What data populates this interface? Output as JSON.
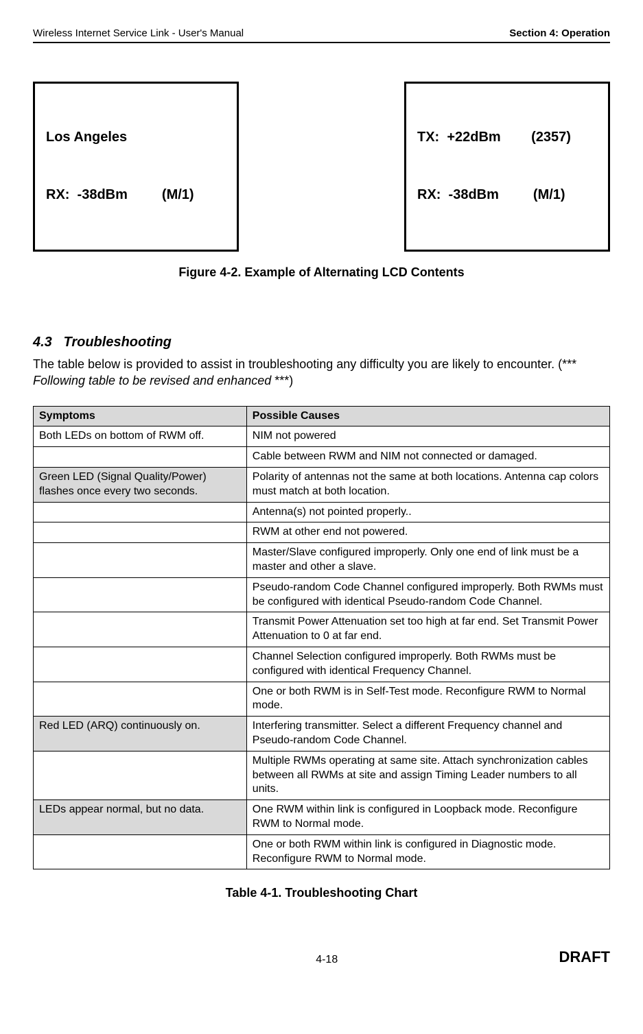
{
  "header": {
    "left": "Wireless Internet Service Link - User's Manual",
    "right": "Section 4: Operation"
  },
  "lcd": {
    "box1": {
      "line1": "Los Angeles",
      "line2": "RX:  -38dBm         (M/1)"
    },
    "box2": {
      "line1": "TX:  +22dBm        (2357)",
      "line2": "RX:  -38dBm         (M/1)"
    }
  },
  "figure_caption": "Figure 4-2.  Example of Alternating LCD Contents",
  "section": {
    "number": "4.3",
    "title": "Troubleshooting",
    "body_prefix": "The table below is provided to assist in troubleshooting any difficulty you are likely to encounter.  (*** ",
    "body_italic": "Following table to be revised and enhanced ",
    "body_suffix": "***)"
  },
  "table": {
    "header": {
      "symptoms": "Symptoms",
      "causes": "Possible Causes"
    },
    "rows": [
      {
        "symptom": "Both LEDs on bottom of RWM off.",
        "cause": "NIM not powered",
        "shaded": false
      },
      {
        "symptom": "",
        "cause": "Cable between RWM and NIM not connected or damaged.",
        "shaded": false
      },
      {
        "symptom": "Green LED (Signal Quality/Power) flashes once every two seconds.",
        "cause": "Polarity of antennas not the same at both locations.  Antenna cap colors must match at both location.",
        "shaded": true
      },
      {
        "symptom": "",
        "cause": "Antenna(s) not pointed properly..",
        "shaded": false
      },
      {
        "symptom": "",
        "cause": "RWM at other end not powered.",
        "shaded": false
      },
      {
        "symptom": "",
        "cause": "Master/Slave configured improperly.  Only one end of link must be a master and other a slave.",
        "shaded": false
      },
      {
        "symptom": "",
        "cause": "Pseudo-random Code Channel configured improperly. Both RWMs must be configured with identical Pseudo-random Code Channel.",
        "shaded": false
      },
      {
        "symptom": "",
        "cause": "Transmit Power Attenuation set too high at far end.  Set Transmit Power Attenuation to 0 at far end.",
        "shaded": false
      },
      {
        "symptom": "",
        "cause": "Channel Selection configured improperly. Both RWMs must be configured with identical Frequency Channel.",
        "shaded": false
      },
      {
        "symptom": "",
        "cause": "One or both RWM is in Self-Test mode. Reconfigure RWM to Normal mode.",
        "shaded": false
      },
      {
        "symptom": "Red LED (ARQ) continuously on.",
        "cause": "Interfering transmitter.  Select a different Frequency channel and Pseudo-random Code Channel.",
        "shaded": true
      },
      {
        "symptom": "",
        "cause": "Multiple RWMs operating at same site.  Attach synchronization cables between all RWMs at site and assign Timing Leader numbers to all units.",
        "shaded": false
      },
      {
        "symptom": "LEDs appear normal, but no data.",
        "cause": "One RWM within link is configured in Loopback mode. Reconfigure RWM to Normal mode.",
        "shaded": true
      },
      {
        "symptom": "",
        "cause": "One or both RWM within link is configured in Diagnostic mode. Reconfigure RWM to Normal mode.",
        "shaded": false
      }
    ]
  },
  "table_caption": "Table 4-1.  Troubleshooting Chart",
  "footer": {
    "page": "4-18",
    "right": "DRAFT"
  }
}
